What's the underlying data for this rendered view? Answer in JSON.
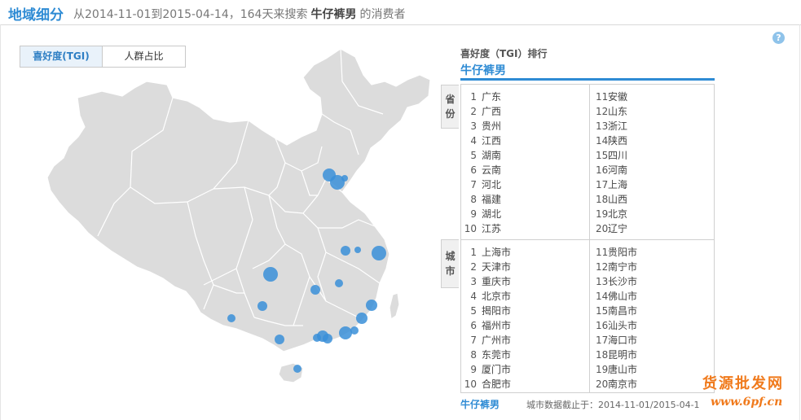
{
  "header": {
    "title": "地域细分",
    "subtitle_prefix": "从2014-11-01到2015-04-14，164天来搜索",
    "keyword": "牛仔裤男",
    "subtitle_suffix": "的消费者"
  },
  "help_label": "?",
  "tabs": [
    {
      "label": "喜好度(TGI)",
      "active": true
    },
    {
      "label": "人群占比",
      "active": false
    }
  ],
  "ranking": {
    "title": "喜好度（TGI）排行",
    "keyword": "牛仔裤男",
    "province_label": "省份",
    "city_label": "城市",
    "provinces_left": [
      {
        "n": "1",
        "name": "广东"
      },
      {
        "n": "2",
        "name": "广西"
      },
      {
        "n": "3",
        "name": "贵州"
      },
      {
        "n": "4",
        "name": "江西"
      },
      {
        "n": "5",
        "name": "湖南"
      },
      {
        "n": "6",
        "name": "云南"
      },
      {
        "n": "7",
        "name": "河北"
      },
      {
        "n": "8",
        "name": "福建"
      },
      {
        "n": "9",
        "name": "湖北"
      },
      {
        "n": "10",
        "name": "江苏"
      }
    ],
    "provinces_right": [
      {
        "n": "11",
        "name": "安徽"
      },
      {
        "n": "12",
        "name": "山东"
      },
      {
        "n": "13",
        "name": "浙江"
      },
      {
        "n": "14",
        "name": "陕西"
      },
      {
        "n": "15",
        "name": "四川"
      },
      {
        "n": "16",
        "name": "河南"
      },
      {
        "n": "17",
        "name": "上海"
      },
      {
        "n": "18",
        "name": "山西"
      },
      {
        "n": "19",
        "name": "北京"
      },
      {
        "n": "20",
        "name": "辽宁"
      }
    ],
    "cities_left": [
      {
        "n": "1",
        "name": "上海市"
      },
      {
        "n": "2",
        "name": "天津市"
      },
      {
        "n": "3",
        "name": "重庆市"
      },
      {
        "n": "4",
        "name": "北京市"
      },
      {
        "n": "5",
        "name": "揭阳市"
      },
      {
        "n": "6",
        "name": "福州市"
      },
      {
        "n": "7",
        "name": "广州市"
      },
      {
        "n": "8",
        "name": "东莞市"
      },
      {
        "n": "9",
        "name": "厦门市"
      },
      {
        "n": "10",
        "name": "合肥市"
      }
    ],
    "cities_right": [
      {
        "n": "11",
        "name": "贵阳市"
      },
      {
        "n": "12",
        "name": "南宁市"
      },
      {
        "n": "13",
        "name": "长沙市"
      },
      {
        "n": "14",
        "name": "佛山市"
      },
      {
        "n": "15",
        "name": "南昌市"
      },
      {
        "n": "16",
        "name": "汕头市"
      },
      {
        "n": "17",
        "name": "海口市"
      },
      {
        "n": "18",
        "name": "昆明市"
      },
      {
        "n": "19",
        "name": "唐山市"
      },
      {
        "n": "20",
        "name": "南京市"
      }
    ]
  },
  "footer": {
    "keyword": "牛仔裤男",
    "date_note": "城市数据截止于：2014-11-01/2015-04-1"
  },
  "watermark": {
    "line1": "货源批发网",
    "line2": "www.6pf.cn"
  },
  "colors": {
    "accent": "#2e8bd4",
    "map_fill": "#dcdcdc",
    "map_border": "#ffffff",
    "bubble": "#3a8fd8",
    "watermark": "#f07a1c"
  },
  "map": {
    "region": "China",
    "bubbles_by_city": [
      "北京市",
      "天津市",
      "唐山市",
      "合肥市",
      "南京市",
      "上海市",
      "重庆市",
      "长沙市",
      "贵阳市",
      "南昌市",
      "昆明市",
      "福州市",
      "厦门市",
      "揭阳市",
      "汕头市",
      "广州市",
      "佛山市",
      "东莞市",
      "南宁市",
      "海口市"
    ]
  }
}
